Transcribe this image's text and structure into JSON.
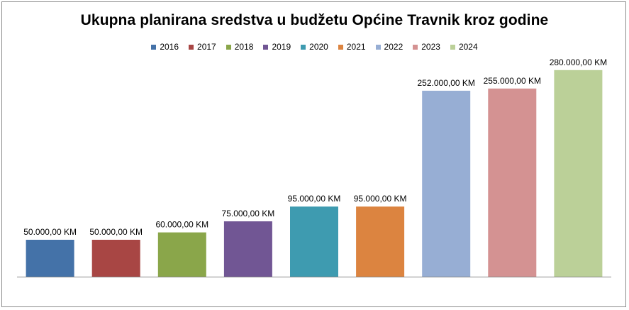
{
  "chart_data": {
    "type": "bar",
    "title": "Ukupna planirana sredstva u budžetu Općine Travnik kroz godine",
    "xlabel": "",
    "ylabel": "",
    "ylim": [
      0,
      300000
    ],
    "grid": false,
    "legend_position": "top",
    "categories": [
      "2016",
      "2017",
      "2018",
      "2019",
      "2020",
      "2021",
      "2022",
      "2023",
      "2024"
    ],
    "values": [
      50000,
      50000,
      60000,
      75000,
      95000,
      95000,
      252000,
      255000,
      280000
    ],
    "data_labels": [
      "50.000,00 KM",
      "50.000,00 KM",
      "60.000,00 KM",
      "75.000,00 KM",
      "95.000,00 KM",
      "95.000,00 KM",
      "252.000,00 KM",
      "255.000,00 KM",
      "280.000,00 KM"
    ],
    "colors": [
      "#4472a8",
      "#a84644",
      "#8aa64a",
      "#715694",
      "#3e9bb0",
      "#dc8440",
      "#97aed4",
      "#d49292",
      "#bbd098"
    ]
  }
}
